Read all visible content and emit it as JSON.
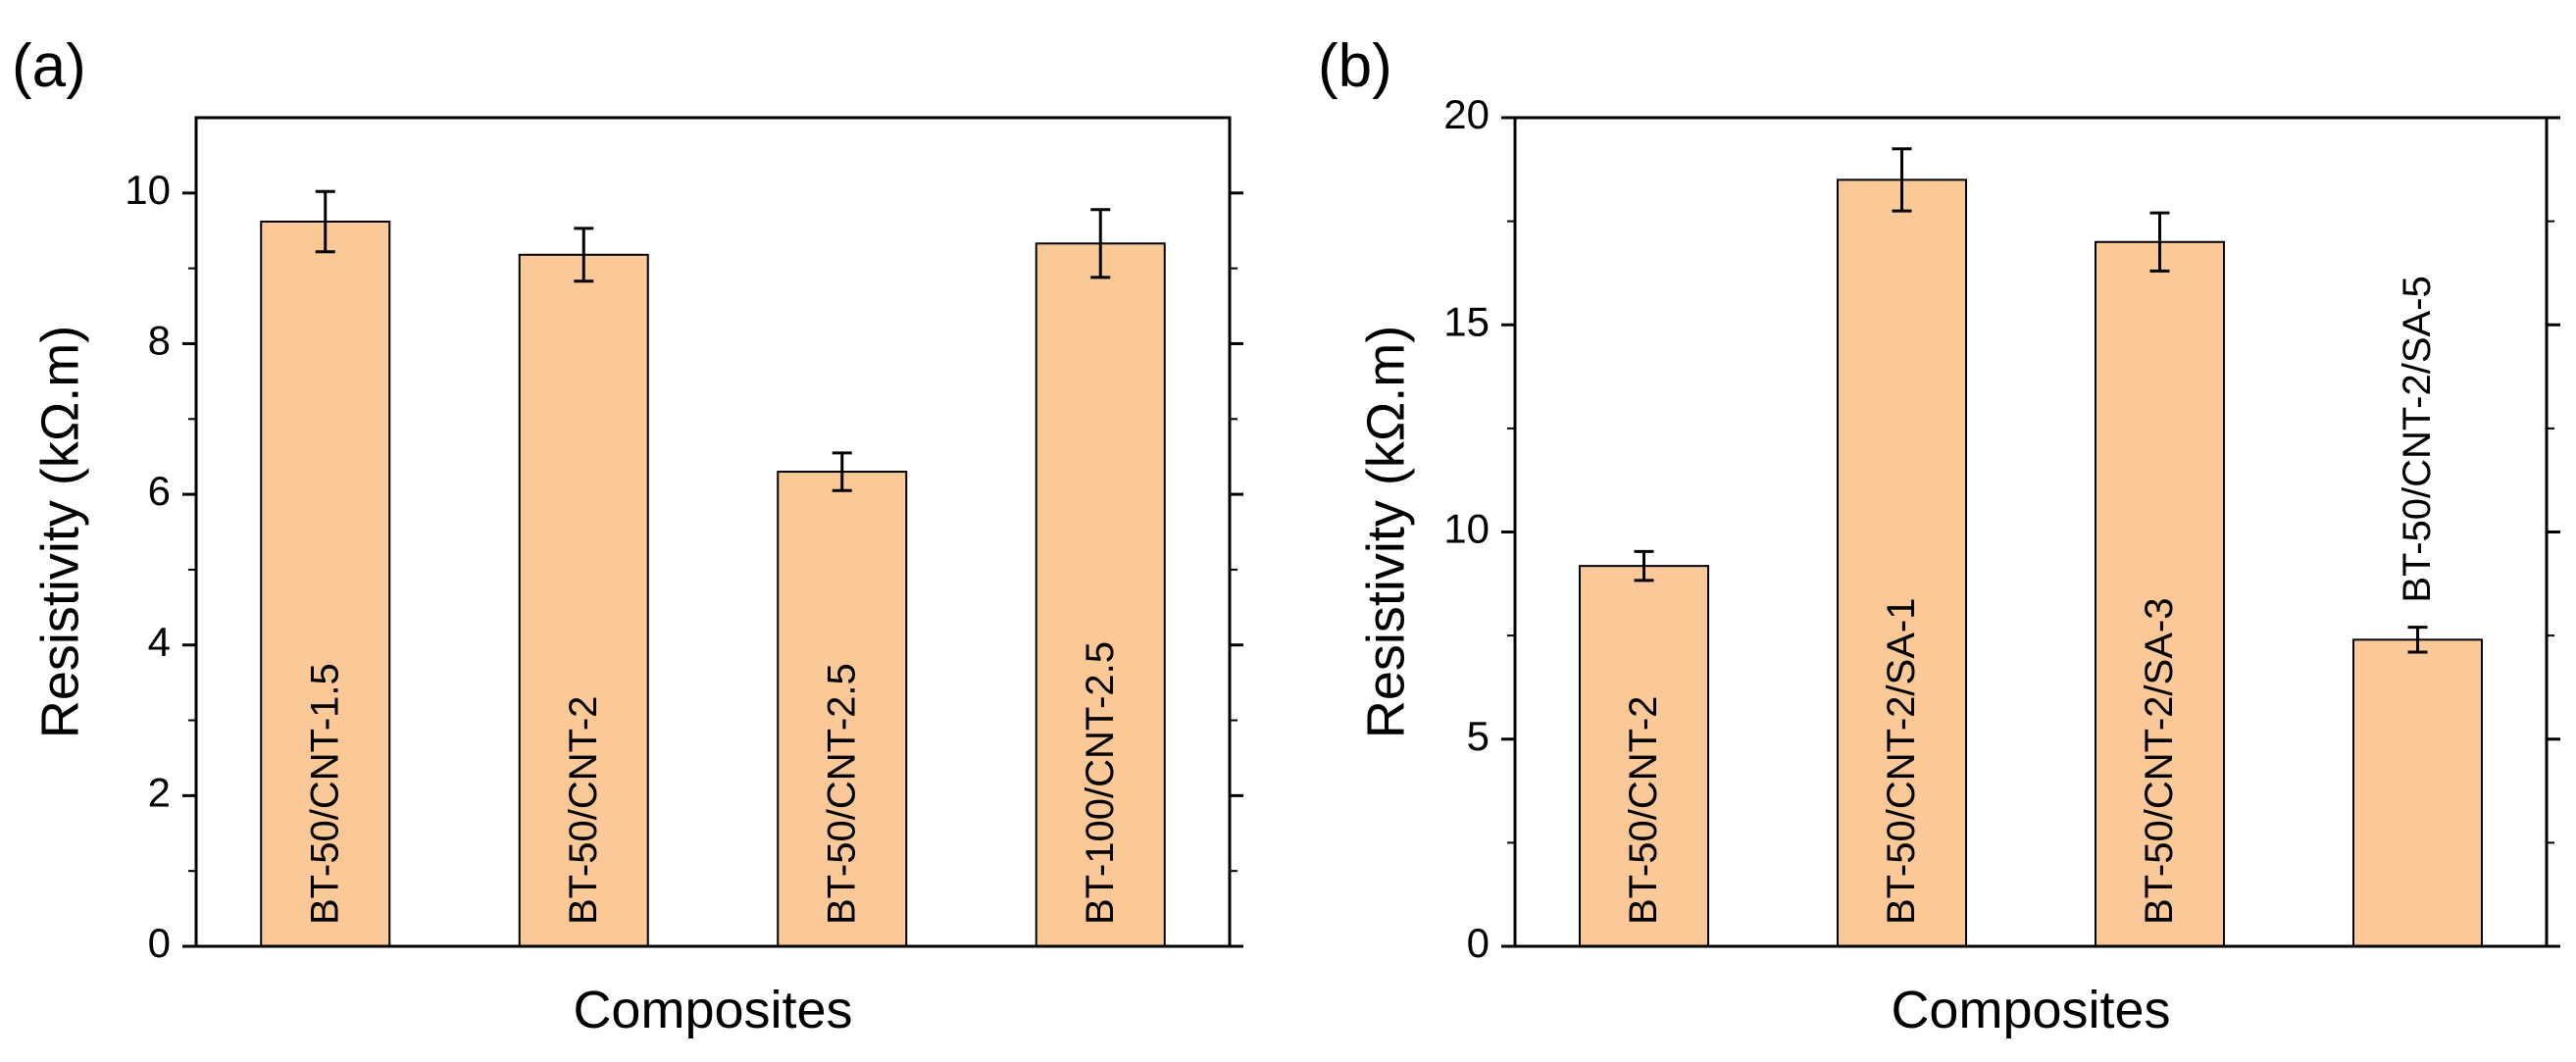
{
  "colors": {
    "bar_fill": "#FBC898",
    "bar_stroke": "#000000",
    "axis": "#000000"
  },
  "chart_data": [
    {
      "panel_label": "(a)",
      "type": "bar",
      "categories": [
        "BT-50/CNT-1.5",
        "BT-50/CNT-2",
        "BT-50/CNT-2.5",
        "BT-100/CNT-2.5"
      ],
      "values": [
        9.62,
        9.18,
        6.3,
        9.33
      ],
      "errors": [
        0.4,
        0.35,
        0.25,
        0.45
      ],
      "xlabel": "Composites",
      "ylabel": "Resistivity (kΩ.m)",
      "ylim": [
        0,
        11
      ],
      "yticks": [
        0,
        2,
        4,
        6,
        8,
        10
      ],
      "yminor_step": 1,
      "bar_label_position": "inside"
    },
    {
      "panel_label": "(b)",
      "type": "bar",
      "categories": [
        "BT-50/CNT-2",
        "BT-50/CNT-2/SA-1",
        "BT-50/CNT-2/SA-3",
        "BT-50/CNT-2/SA-5"
      ],
      "values": [
        9.18,
        18.5,
        17.0,
        7.4
      ],
      "errors": [
        0.35,
        0.75,
        0.7,
        0.3
      ],
      "xlabel": "Composites",
      "ylabel": "Resistivity (kΩ.m)",
      "ylim": [
        0,
        20
      ],
      "yticks": [
        0,
        5,
        10,
        15,
        20
      ],
      "yminor_step": 2.5,
      "bar_label_position": [
        "inside",
        "inside",
        "inside",
        "above"
      ]
    }
  ]
}
